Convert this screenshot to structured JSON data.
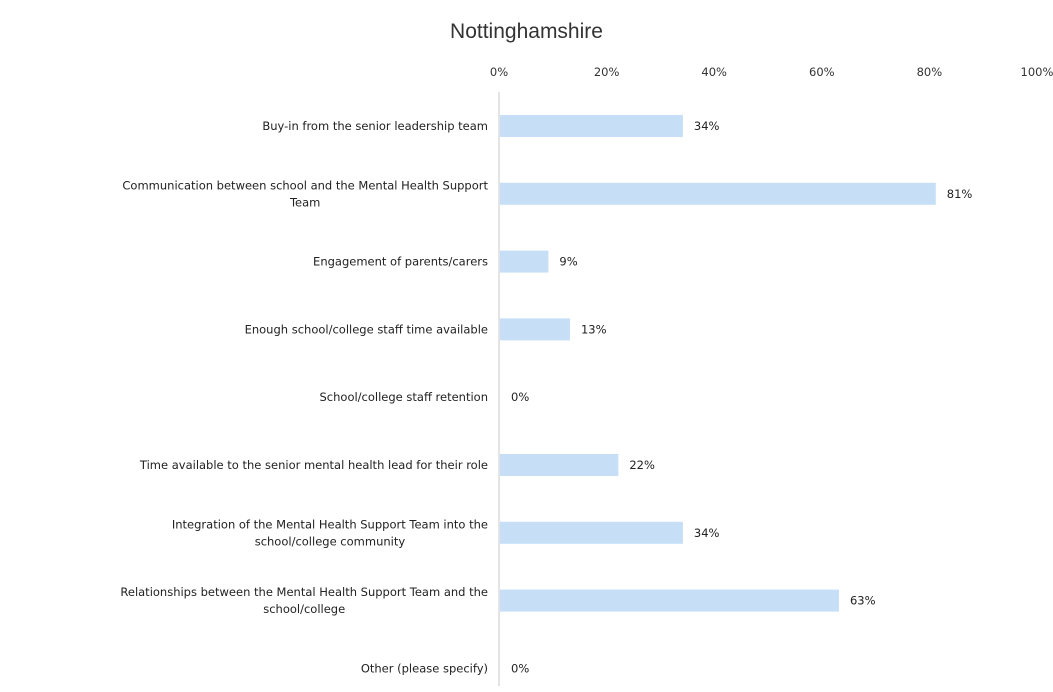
{
  "chart_data": {
    "type": "bar",
    "orientation": "horizontal",
    "title": "Nottinghamshire",
    "xlabel": "",
    "ylabel": "",
    "xlim": [
      0,
      100
    ],
    "x_ticks": [
      "0%",
      "20%",
      "40%",
      "60%",
      "80%",
      "100%"
    ],
    "x_tick_values": [
      0,
      20,
      40,
      60,
      80,
      100
    ],
    "grid": false,
    "bar_color": "#c6dff7",
    "categories": [
      [
        "Buy-in from the senior leadership team"
      ],
      [
        "Communication between school and the Mental Health Support",
        "Team"
      ],
      [
        "Engagement of parents/carers"
      ],
      [
        "Enough school/college staff time available"
      ],
      [
        "School/college staff retention"
      ],
      [
        "Time available to the senior mental health lead for their role"
      ],
      [
        "Integration of the Mental Health Support Team into the",
        "school/college community"
      ],
      [
        "Relationships between the Mental Health Support Team and the",
        "school/college"
      ],
      [
        "Other (please specify)"
      ]
    ],
    "values": [
      34,
      81,
      9,
      13,
      0,
      22,
      34,
      63,
      0
    ],
    "data_labels": [
      "34%",
      "81%",
      "9%",
      "13%",
      "0%",
      "22%",
      "34%",
      "63%",
      "0%"
    ]
  }
}
